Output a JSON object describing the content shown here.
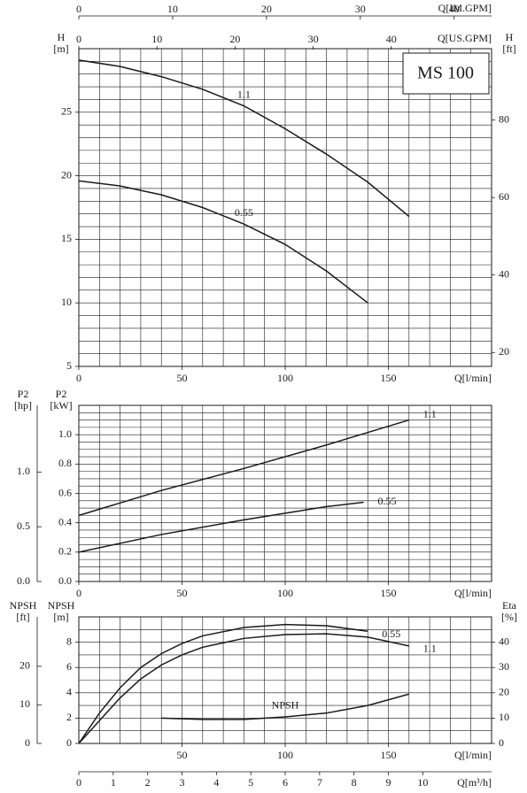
{
  "chart_data": [
    {
      "type": "line",
      "title": "MS 100",
      "xlim": [
        0,
        200
      ],
      "xticks": [
        0,
        50,
        100,
        150
      ],
      "xlabel": "Q[l/min]",
      "ylim": [
        5,
        30
      ],
      "yticks": [
        5,
        10,
        15,
        20,
        25
      ],
      "ylabel": [
        "H",
        "[m]"
      ],
      "y2lim": [
        16.404,
        98.425
      ],
      "y2ticks": [
        20,
        40,
        60,
        80
      ],
      "y2label": [
        "H",
        "[ft]"
      ],
      "grid": {
        "x": 10,
        "y": 1
      },
      "top_axes": [
        {
          "label": "Q[IM.GPM]",
          "lim": [
            0,
            43.99
          ],
          "ticks": [
            0,
            10,
            20,
            30,
            40
          ]
        },
        {
          "label": "Q[US.GPM]",
          "lim": [
            0,
            52.84
          ],
          "ticks": [
            0,
            10,
            20,
            30,
            40
          ]
        }
      ],
      "series": [
        {
          "name": "1.1",
          "color": "#1a1a1a",
          "x": [
            0,
            20,
            40,
            60,
            80,
            100,
            120,
            140,
            160
          ],
          "values": [
            29.1,
            28.6,
            27.8,
            26.8,
            25.5,
            23.7,
            21.7,
            19.5,
            16.8
          ]
        },
        {
          "name": "0.55",
          "color": "#1a1a1a",
          "x": [
            0,
            20,
            40,
            60,
            80,
            100,
            120,
            140
          ],
          "values": [
            19.6,
            19.2,
            18.5,
            17.5,
            16.2,
            14.6,
            12.5,
            10.0
          ]
        }
      ]
    },
    {
      "type": "line",
      "xlim": [
        0,
        200
      ],
      "xticks": [
        0,
        50,
        100,
        150
      ],
      "xlabel": "Q[l/min]",
      "ylim": [
        0,
        1.2
      ],
      "yticks": [
        {
          "value": 0,
          "label": "0.0"
        },
        0.2,
        0.4,
        0.6,
        0.8,
        {
          "value": 1,
          "label": "1.0"
        }
      ],
      "ylabel": [
        "P2",
        "[kW]"
      ],
      "y_alt": {
        "label": [
          "P2",
          "[hp]"
        ],
        "lim": [
          0,
          1.609
        ],
        "ticks": [
          {
            "value": 0,
            "label": "0.0"
          },
          0.5,
          {
            "value": 1,
            "label": "1.0"
          }
        ]
      },
      "grid": {
        "x": 10,
        "y": 0.05
      },
      "series": [
        {
          "name": "1.1",
          "color": "#1a1a1a",
          "x": [
            0,
            40,
            80,
            120,
            160
          ],
          "values": [
            0.45,
            0.62,
            0.77,
            0.93,
            1.1
          ]
        },
        {
          "name": "0.55",
          "color": "#1a1a1a",
          "x": [
            0,
            40,
            80,
            120,
            138
          ],
          "values": [
            0.2,
            0.32,
            0.42,
            0.51,
            0.54
          ]
        }
      ]
    },
    {
      "type": "line",
      "xlim": [
        0,
        200
      ],
      "xticks": [
        50,
        100,
        150
      ],
      "xlabel": "Q[l/min]",
      "ylim": [
        0,
        10
      ],
      "yticks": [
        0,
        2,
        4,
        6,
        8
      ],
      "ylabel": [
        "NPSH",
        "[m]"
      ],
      "y_alt": {
        "label": [
          "NPSH",
          "[ft]"
        ],
        "lim": [
          0,
          32.81
        ],
        "ticks": [
          0,
          10,
          20
        ]
      },
      "y2lim": [
        0,
        50
      ],
      "y2ticks": [
        0,
        10,
        20,
        30,
        40
      ],
      "y2label": [
        "Eta",
        "[%]"
      ],
      "grid": {
        "x": 10,
        "y": 1
      },
      "bottom_axis": {
        "label": "Q[m³/h]",
        "lim": [
          0,
          12
        ],
        "ticks": [
          0,
          1,
          2,
          3,
          4,
          5,
          6,
          7,
          8,
          9,
          10
        ]
      },
      "series": [
        {
          "name": "0.55",
          "color": "#1a1a1a",
          "axis": "y2",
          "x": [
            0,
            10,
            20,
            30,
            40,
            50,
            60,
            80,
            100,
            120,
            140
          ],
          "values": [
            0,
            12,
            22,
            30,
            35.5,
            39.5,
            42.5,
            45.8,
            47,
            46.5,
            44.3
          ]
        },
        {
          "name": "1.1",
          "color": "#1a1a1a",
          "axis": "y2",
          "x": [
            0,
            10,
            20,
            30,
            40,
            50,
            60,
            80,
            100,
            120,
            140,
            160
          ],
          "values": [
            0,
            9,
            18,
            25.5,
            31,
            35,
            38,
            41.5,
            43,
            43.3,
            42,
            38.5
          ]
        },
        {
          "name": "NPSH",
          "color": "#1a1a1a",
          "x": [
            40,
            60,
            80,
            100,
            120,
            140,
            160
          ],
          "values": [
            2.0,
            1.9,
            1.9,
            2.1,
            2.4,
            3.0,
            3.9
          ]
        }
      ]
    }
  ]
}
